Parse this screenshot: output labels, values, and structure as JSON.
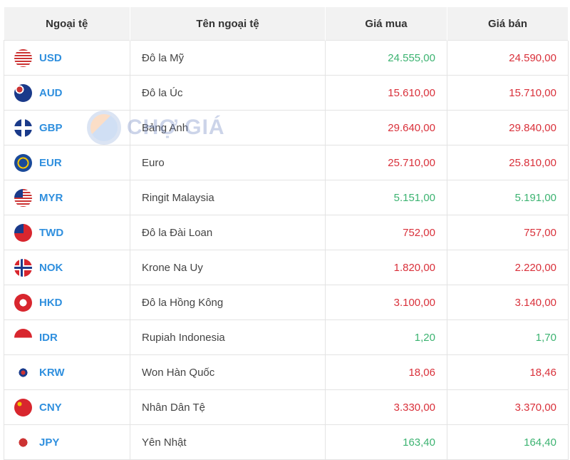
{
  "colors": {
    "up": "#3cb371",
    "down": "#d9303a",
    "code": "#2f8fde"
  },
  "watermark": "CHỢ GIÁ",
  "headers": [
    "Ngoại tệ",
    "Tên ngoại tệ",
    "Giá mua",
    "Giá bán"
  ],
  "rows": [
    {
      "code": "USD",
      "name": "Đô la Mỹ",
      "buy": "24.555,00",
      "sell": "24.590,00",
      "buy_dir": "up",
      "sell_dir": "down",
      "flag": "us-flag-icon"
    },
    {
      "code": "AUD",
      "name": "Đô la Úc",
      "buy": "15.610,00",
      "sell": "15.710,00",
      "buy_dir": "down",
      "sell_dir": "down",
      "flag": "au-flag-icon"
    },
    {
      "code": "GBP",
      "name": "Bảng Anh",
      "buy": "29.640,00",
      "sell": "29.840,00",
      "buy_dir": "down",
      "sell_dir": "down",
      "flag": "gb-flag-icon"
    },
    {
      "code": "EUR",
      "name": "Euro",
      "buy": "25.710,00",
      "sell": "25.810,00",
      "buy_dir": "down",
      "sell_dir": "down",
      "flag": "eu-flag-icon"
    },
    {
      "code": "MYR",
      "name": "Ringit Malaysia",
      "buy": "5.151,00",
      "sell": "5.191,00",
      "buy_dir": "up",
      "sell_dir": "up",
      "flag": "my-flag-icon"
    },
    {
      "code": "TWD",
      "name": "Đô la Đài Loan",
      "buy": "752,00",
      "sell": "757,00",
      "buy_dir": "down",
      "sell_dir": "down",
      "flag": "tw-flag-icon"
    },
    {
      "code": "NOK",
      "name": "Krone Na Uy",
      "buy": "1.820,00",
      "sell": "2.220,00",
      "buy_dir": "down",
      "sell_dir": "down",
      "flag": "no-flag-icon"
    },
    {
      "code": "HKD",
      "name": "Đô la Hồng Kông",
      "buy": "3.100,00",
      "sell": "3.140,00",
      "buy_dir": "down",
      "sell_dir": "down",
      "flag": "hk-flag-icon"
    },
    {
      "code": "IDR",
      "name": "Rupiah Indonesia",
      "buy": "1,20",
      "sell": "1,70",
      "buy_dir": "up",
      "sell_dir": "up",
      "flag": "id-flag-icon"
    },
    {
      "code": "KRW",
      "name": "Won Hàn Quốc",
      "buy": "18,06",
      "sell": "18,46",
      "buy_dir": "down",
      "sell_dir": "down",
      "flag": "kr-flag-icon"
    },
    {
      "code": "CNY",
      "name": "Nhân Dân Tệ",
      "buy": "3.330,00",
      "sell": "3.370,00",
      "buy_dir": "down",
      "sell_dir": "down",
      "flag": "cn-flag-icon"
    },
    {
      "code": "JPY",
      "name": "Yên Nhật",
      "buy": "163,40",
      "sell": "164,40",
      "buy_dir": "up",
      "sell_dir": "up",
      "flag": "jp-flag-icon"
    }
  ]
}
